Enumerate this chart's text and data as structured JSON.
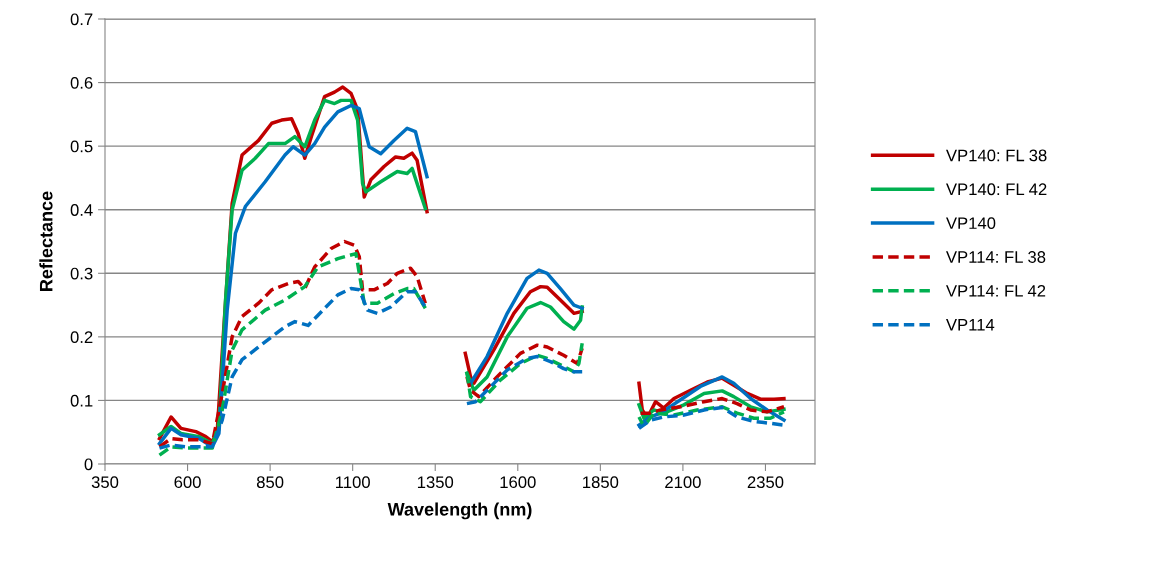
{
  "chart_data": {
    "type": "line",
    "xlabel": "Wavelength (nm)",
    "ylabel": "Reflectance",
    "xlim": [
      350,
      2500
    ],
    "xticks": [
      350,
      600,
      850,
      1100,
      1350,
      1600,
      1850,
      2100,
      2350
    ],
    "ylim": [
      0,
      0.7
    ],
    "yticks": [
      0,
      0.1,
      0.2,
      0.3,
      0.4,
      0.5,
      0.6,
      0.7
    ],
    "grid": "y",
    "legend": "right",
    "marker": "none",
    "series": [
      {
        "name": "VP140: FL 38",
        "color": "#c00000",
        "line_style": "solid",
        "x": [
          515,
          550,
          580,
          625,
          655,
          675,
          690,
          710,
          735,
          765,
          815,
          855,
          885,
          915,
          935,
          955,
          975,
          1015,
          1045,
          1070,
          1095,
          1115,
          1135,
          1155,
          1195,
          1230,
          1255,
          1280,
          1295,
          1325,
          1390,
          1441,
          1457,
          1467,
          1527,
          1588,
          1638,
          1669,
          1689,
          1729,
          1770,
          1795,
          1880,
          1967,
          1977,
          1992,
          2017,
          2042,
          2073,
          2123,
          2174,
          2219,
          2254,
          2295,
          2335,
          2376,
          2406
        ],
        "values": [
          0.04,
          0.074,
          0.056,
          0.051,
          0.043,
          0.035,
          0.053,
          0.216,
          0.41,
          0.486,
          0.509,
          0.536,
          0.541,
          0.543,
          0.52,
          0.481,
          0.515,
          0.578,
          0.585,
          0.593,
          0.583,
          0.557,
          0.42,
          0.447,
          0.468,
          0.483,
          0.481,
          0.489,
          0.478,
          0.397,
          null,
          0.174,
          0.137,
          0.127,
          0.179,
          0.237,
          0.271,
          0.279,
          0.278,
          0.258,
          0.237,
          0.24,
          null,
          0.127,
          0.085,
          0.072,
          0.098,
          0.088,
          0.103,
          0.116,
          0.129,
          0.135,
          0.124,
          0.111,
          0.102,
          0.102,
          0.103
        ]
      },
      {
        "name": "VP140: FL 42",
        "color": "#00b050",
        "line_style": "solid",
        "x": [
          515,
          550,
          580,
          635,
          675,
          695,
          715,
          735,
          765,
          805,
          845,
          895,
          925,
          955,
          985,
          1015,
          1045,
          1065,
          1095,
          1115,
          1130,
          1140,
          1185,
          1235,
          1265,
          1280,
          1320,
          1390,
          1446,
          1467,
          1507,
          1568,
          1628,
          1669,
          1699,
          1739,
          1770,
          1790,
          1795,
          1880,
          1967,
          1982,
          2012,
          2042,
          2103,
          2164,
          2219,
          2254,
          2305,
          2355,
          2406
        ],
        "values": [
          0.046,
          0.059,
          0.048,
          0.043,
          0.032,
          0.059,
          0.258,
          0.4,
          0.462,
          0.481,
          0.504,
          0.504,
          0.515,
          0.499,
          0.541,
          0.572,
          0.567,
          0.572,
          0.572,
          0.541,
          0.441,
          0.428,
          0.444,
          0.46,
          0.457,
          0.465,
          0.402,
          null,
          0.143,
          0.116,
          0.137,
          0.2,
          0.245,
          0.254,
          0.247,
          0.224,
          0.212,
          0.226,
          0.247,
          null,
          0.093,
          0.072,
          0.085,
          0.08,
          0.093,
          0.111,
          0.115,
          0.106,
          0.09,
          0.082,
          0.086
        ]
      },
      {
        "name": "VP140",
        "color": "#0070c0",
        "line_style": "solid",
        "x": [
          515,
          550,
          580,
          635,
          675,
          695,
          720,
          745,
          775,
          835,
          895,
          920,
          955,
          985,
          1015,
          1055,
          1095,
          1120,
          1150,
          1185,
          1225,
          1265,
          1290,
          1325,
          1390,
          1457,
          1507,
          1568,
          1628,
          1664,
          1689,
          1729,
          1770,
          1795,
          1880,
          1967,
          2002,
          2032,
          2093,
          2153,
          2219,
          2254,
          2305,
          2355,
          2406
        ],
        "values": [
          0.032,
          0.056,
          0.046,
          0.04,
          0.027,
          0.048,
          0.242,
          0.363,
          0.405,
          0.444,
          0.486,
          0.499,
          0.486,
          0.504,
          0.53,
          0.554,
          0.564,
          0.559,
          0.499,
          0.488,
          0.509,
          0.528,
          0.523,
          0.452,
          null,
          0.127,
          0.169,
          0.237,
          0.292,
          0.305,
          0.3,
          0.276,
          0.25,
          0.245,
          null,
          0.061,
          0.074,
          0.08,
          0.101,
          0.122,
          0.137,
          0.127,
          0.103,
          0.085,
          0.069
        ]
      },
      {
        "name": "VP114: FL 38",
        "color": "#c00000",
        "line_style": "dashed",
        "x": [
          515,
          550,
          585,
          635,
          675,
          705,
          735,
          765,
          815,
          855,
          905,
          935,
          955,
          985,
          1035,
          1075,
          1105,
          1120,
          1130,
          1165,
          1205,
          1235,
          1275,
          1295,
          1320,
          1390,
          1446,
          1457,
          1482,
          1537,
          1608,
          1659,
          1689,
          1739,
          1780,
          1795,
          1880,
          1972,
          2002,
          2032,
          2093,
          2164,
          2219,
          2264,
          2305,
          2355,
          2406
        ],
        "values": [
          0.027,
          0.04,
          0.038,
          0.038,
          0.032,
          0.111,
          0.2,
          0.232,
          0.253,
          0.274,
          0.284,
          0.287,
          0.276,
          0.31,
          0.339,
          0.35,
          0.344,
          0.326,
          0.274,
          0.274,
          0.284,
          0.3,
          0.308,
          0.295,
          0.253,
          null,
          0.137,
          0.116,
          0.106,
          0.137,
          0.174,
          0.187,
          0.184,
          0.171,
          0.158,
          0.182,
          null,
          0.08,
          0.08,
          0.085,
          0.09,
          0.098,
          0.103,
          0.095,
          0.085,
          0.082,
          0.09
        ]
      },
      {
        "name": "VP114: FL 42",
        "color": "#00b050",
        "line_style": "dashed",
        "x": [
          515,
          550,
          595,
          675,
          705,
          735,
          765,
          835,
          895,
          955,
          995,
          1055,
          1110,
          1120,
          1135,
          1175,
          1225,
          1265,
          1285,
          1320,
          1390,
          1446,
          1457,
          1487,
          1547,
          1608,
          1659,
          1689,
          1729,
          1770,
          1785,
          1795,
          1880,
          1967,
          1982,
          2012,
          2073,
          2143,
          2219,
          2264,
          2315,
          2365,
          2406
        ],
        "values": [
          0.014,
          0.027,
          0.025,
          0.025,
          0.085,
          0.179,
          0.211,
          0.242,
          0.258,
          0.279,
          0.31,
          0.323,
          0.331,
          0.3,
          0.253,
          0.253,
          0.268,
          0.276,
          0.276,
          0.245,
          null,
          0.143,
          0.106,
          0.098,
          0.132,
          0.158,
          0.171,
          0.166,
          0.156,
          0.145,
          0.158,
          0.19,
          null,
          0.074,
          0.059,
          0.08,
          0.077,
          0.085,
          0.09,
          0.08,
          0.072,
          0.072,
          0.082
        ]
      },
      {
        "name": "VP114",
        "color": "#0070c0",
        "line_style": "dashed",
        "x": [
          515,
          550,
          595,
          675,
          705,
          735,
          765,
          835,
          895,
          925,
          965,
          995,
          1055,
          1095,
          1120,
          1145,
          1175,
          1215,
          1265,
          1290,
          1320,
          1390,
          1446,
          1472,
          1507,
          1568,
          1628,
          1659,
          1699,
          1739,
          1770,
          1795,
          1880,
          1967,
          2002,
          2042,
          2103,
          2164,
          2219,
          2264,
          2315,
          2365,
          2406
        ],
        "values": [
          0.025,
          0.03,
          0.027,
          0.027,
          0.069,
          0.137,
          0.164,
          0.192,
          0.216,
          0.224,
          0.218,
          0.234,
          0.266,
          0.276,
          0.274,
          0.242,
          0.237,
          0.247,
          0.271,
          0.271,
          0.247,
          null,
          0.095,
          0.098,
          0.116,
          0.148,
          0.166,
          0.169,
          0.161,
          0.15,
          0.145,
          0.145,
          null,
          0.056,
          0.069,
          0.074,
          0.077,
          0.085,
          0.089,
          0.074,
          0.067,
          0.064,
          0.061
        ]
      }
    ]
  }
}
